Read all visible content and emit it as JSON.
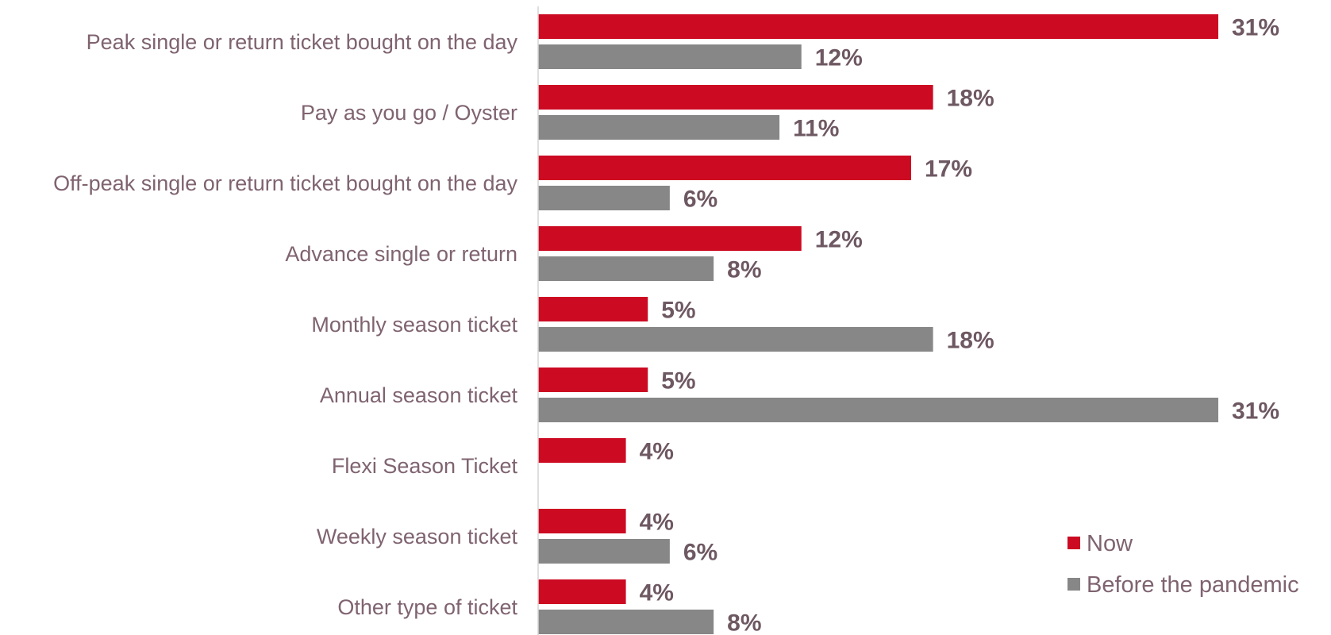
{
  "chart_data": {
    "type": "bar",
    "orientation": "horizontal",
    "categories": [
      "Peak single or return ticket bought on the day",
      "Pay as you go / Oyster",
      "Off-peak single or return ticket bought on the day",
      "Advance single or return",
      "Monthly season ticket",
      "Annual season ticket",
      "Flexi Season Ticket",
      "Weekly season ticket",
      "Other type of ticket"
    ],
    "series": [
      {
        "name": "Now",
        "color": "#cc0a22",
        "values": [
          31,
          18,
          17,
          12,
          5,
          5,
          4,
          4,
          4
        ],
        "labels": [
          "31%",
          "18%",
          "17%",
          "12%",
          "5%",
          "5%",
          "4%",
          "4%",
          "4%"
        ]
      },
      {
        "name": "Before the pandemic",
        "color": "#878787",
        "values": [
          12,
          11,
          6,
          8,
          18,
          31,
          null,
          6,
          8
        ],
        "labels": [
          "12%",
          "11%",
          "6%",
          "8%",
          "18%",
          "31%",
          null,
          "6%",
          "8%"
        ]
      }
    ],
    "xlim": [
      0,
      31
    ],
    "grid": false,
    "legend_position": "bottom-right"
  }
}
